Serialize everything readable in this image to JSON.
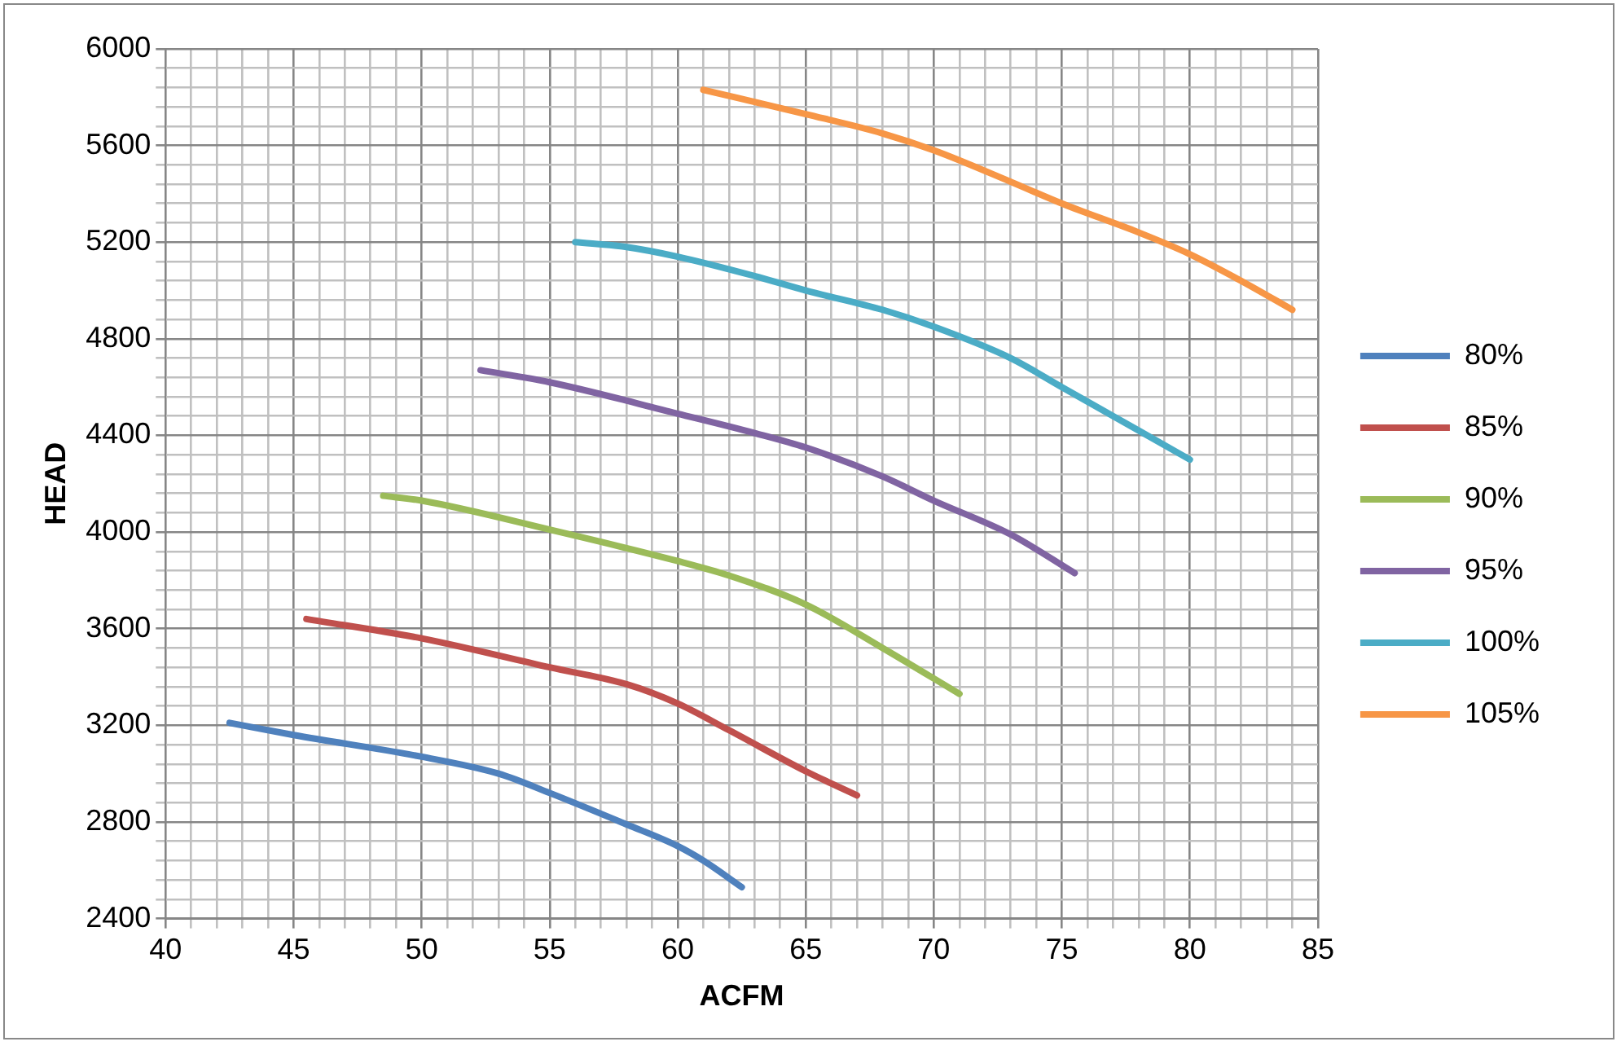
{
  "chart_data": {
    "type": "line",
    "xlabel": "ACFM",
    "ylabel": "HEAD",
    "legend": "right",
    "grid": true,
    "marker": "none",
    "line_style": "solid",
    "xlim": [
      40,
      85
    ],
    "xticks": [
      40,
      {
        "value": 41,
        "label": null
      },
      {
        "value": 42,
        "label": null
      },
      {
        "value": 43,
        "label": null
      },
      {
        "value": 44,
        "label": null
      },
      45,
      {
        "value": 46,
        "label": null
      },
      {
        "value": 47,
        "label": null
      },
      {
        "value": 48,
        "label": null
      },
      {
        "value": 49,
        "label": null
      },
      50,
      {
        "value": 51,
        "label": null
      },
      {
        "value": 52,
        "label": null
      },
      {
        "value": 53,
        "label": null
      },
      {
        "value": 54,
        "label": null
      },
      55,
      {
        "value": 56,
        "label": null
      },
      {
        "value": 57,
        "label": null
      },
      {
        "value": 58,
        "label": null
      },
      {
        "value": 59,
        "label": null
      },
      60,
      {
        "value": 61,
        "label": null
      },
      {
        "value": 62,
        "label": null
      },
      {
        "value": 63,
        "label": null
      },
      {
        "value": 64,
        "label": null
      },
      65,
      {
        "value": 66,
        "label": null
      },
      {
        "value": 67,
        "label": null
      },
      {
        "value": 68,
        "label": null
      },
      {
        "value": 69,
        "label": null
      },
      70,
      {
        "value": 71,
        "label": null
      },
      {
        "value": 72,
        "label": null
      },
      {
        "value": 73,
        "label": null
      },
      {
        "value": 74,
        "label": null
      },
      75,
      {
        "value": 76,
        "label": null
      },
      {
        "value": 77,
        "label": null
      },
      {
        "value": 78,
        "label": null
      },
      {
        "value": 79,
        "label": null
      },
      80,
      {
        "value": 81,
        "label": null
      },
      {
        "value": 82,
        "label": null
      },
      {
        "value": 83,
        "label": null
      },
      {
        "value": 84,
        "label": null
      },
      85
    ],
    "ylim": [
      2400,
      6000
    ],
    "yticks": [
      2400,
      {
        "value": 2480,
        "label": null
      },
      {
        "value": 2560,
        "label": null
      },
      {
        "value": 2640,
        "label": null
      },
      {
        "value": 2720,
        "label": null
      },
      2800,
      {
        "value": 2880,
        "label": null
      },
      {
        "value": 2960,
        "label": null
      },
      {
        "value": 3040,
        "label": null
      },
      {
        "value": 3120,
        "label": null
      },
      3200,
      {
        "value": 3280,
        "label": null
      },
      {
        "value": 3360,
        "label": null
      },
      {
        "value": 3440,
        "label": null
      },
      {
        "value": 3520,
        "label": null
      },
      3600,
      {
        "value": 3680,
        "label": null
      },
      {
        "value": 3760,
        "label": null
      },
      {
        "value": 3840,
        "label": null
      },
      {
        "value": 3920,
        "label": null
      },
      4000,
      {
        "value": 4080,
        "label": null
      },
      {
        "value": 4160,
        "label": null
      },
      {
        "value": 4240,
        "label": null
      },
      {
        "value": 4320,
        "label": null
      },
      4400,
      {
        "value": 4480,
        "label": null
      },
      {
        "value": 4560,
        "label": null
      },
      {
        "value": 4640,
        "label": null
      },
      {
        "value": 4720,
        "label": null
      },
      4800,
      {
        "value": 4880,
        "label": null
      },
      {
        "value": 4960,
        "label": null
      },
      {
        "value": 5040,
        "label": null
      },
      {
        "value": 5120,
        "label": null
      },
      5200,
      {
        "value": 5280,
        "label": null
      },
      {
        "value": 5360,
        "label": null
      },
      {
        "value": 5440,
        "label": null
      },
      {
        "value": 5520,
        "label": null
      },
      5600,
      {
        "value": 5680,
        "label": null
      },
      {
        "value": 5760,
        "label": null
      },
      {
        "value": 5840,
        "label": null
      },
      {
        "value": 5920,
        "label": null
      },
      6000
    ],
    "series": [
      {
        "name": "80%",
        "color": "#4f81bd",
        "x": [
          42.5,
          45,
          50,
          53,
          55,
          58,
          60,
          61,
          62.5
        ],
        "values": [
          3210,
          3160,
          3070,
          3000,
          2920,
          2790,
          2700,
          2640,
          2530
        ]
      },
      {
        "name": "85%",
        "color": "#c0504d",
        "x": [
          45.5,
          50,
          55,
          58,
          60,
          62,
          65,
          67
        ],
        "values": [
          3640,
          3560,
          3440,
          3370,
          3290,
          3180,
          3010,
          2910
        ]
      },
      {
        "name": "90%",
        "color": "#9bbb59",
        "x": [
          48.5,
          50,
          55,
          60,
          62,
          65,
          68,
          71
        ],
        "values": [
          4150,
          4130,
          4010,
          3880,
          3820,
          3700,
          3520,
          3330
        ]
      },
      {
        "name": "95%",
        "color": "#8064a2",
        "x": [
          52.3,
          55,
          60,
          63,
          65,
          68,
          70,
          73,
          75.5
        ],
        "values": [
          4670,
          4620,
          4490,
          4410,
          4350,
          4230,
          4130,
          3990,
          3830
        ]
      },
      {
        "name": "100%",
        "color": "#4bacc6",
        "x": [
          56,
          58,
          60,
          63,
          65,
          68,
          70,
          73,
          75,
          78,
          80
        ],
        "values": [
          5200,
          5180,
          5140,
          5060,
          5000,
          4920,
          4850,
          4720,
          4600,
          4420,
          4300
        ]
      },
      {
        "name": "105%",
        "color": "#f79646",
        "x": [
          61,
          65,
          68,
          70,
          73,
          75,
          78,
          80,
          82,
          84
        ],
        "values": [
          5830,
          5730,
          5650,
          5580,
          5450,
          5360,
          5240,
          5150,
          5040,
          4920
        ]
      }
    ]
  }
}
